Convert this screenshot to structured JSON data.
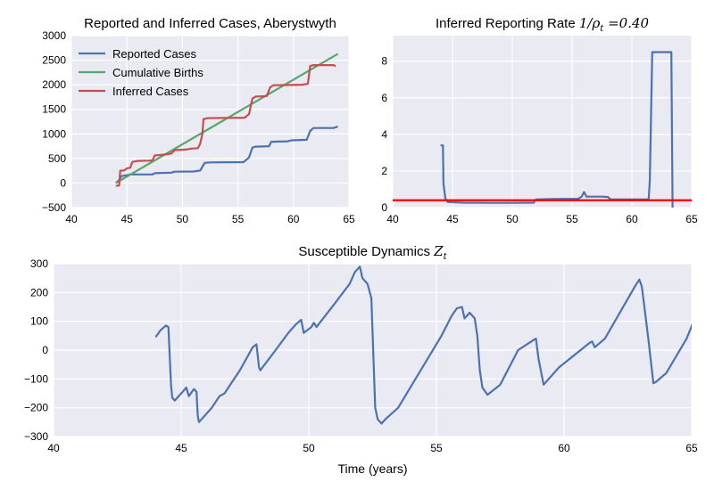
{
  "chart_data": [
    {
      "type": "line",
      "title": "Reported and Inferred Cases, Aberystwyth",
      "xlabel": "",
      "ylabel": "",
      "xlim": [
        40,
        65
      ],
      "ylim": [
        -500,
        3000
      ],
      "xticks": [
        40,
        45,
        50,
        55,
        60,
        65
      ],
      "yticks": [
        -500,
        0,
        500,
        1000,
        1500,
        2000,
        2500,
        3000
      ],
      "xticklabels": [
        "40",
        "45",
        "50",
        "55",
        "60",
        "65"
      ],
      "yticklabels": [
        "−500",
        "0",
        "500",
        "1000",
        "1500",
        "2000",
        "2500",
        "3000"
      ],
      "grid": true,
      "legend": "top-left",
      "series": [
        {
          "name": "Reported Cases",
          "color": "#4C72B0",
          "points": [
            [
              44.0,
              0
            ],
            [
              44.3,
              60
            ],
            [
              44.5,
              140
            ],
            [
              45.0,
              160
            ],
            [
              45.3,
              175
            ],
            [
              47.3,
              175
            ],
            [
              47.5,
              200
            ],
            [
              49.0,
              210
            ],
            [
              49.3,
              230
            ],
            [
              51.0,
              235
            ],
            [
              51.6,
              255
            ],
            [
              52.0,
              410
            ],
            [
              52.5,
              420
            ],
            [
              55.5,
              425
            ],
            [
              56.0,
              520
            ],
            [
              56.3,
              720
            ],
            [
              56.6,
              740
            ],
            [
              57.8,
              750
            ],
            [
              58.0,
              840
            ],
            [
              59.5,
              850
            ],
            [
              59.8,
              870
            ],
            [
              61.2,
              880
            ],
            [
              61.5,
              1060
            ],
            [
              61.8,
              1120
            ],
            [
              63.6,
              1120
            ],
            [
              64.0,
              1150
            ]
          ]
        },
        {
          "name": "Cumulative Births",
          "color": "#55A868",
          "points": [
            [
              44.0,
              0
            ],
            [
              64.0,
              2630
            ]
          ]
        },
        {
          "name": "Inferred Cases",
          "color": "#C44E52",
          "points": [
            [
              44.0,
              -60
            ],
            [
              44.3,
              -50
            ],
            [
              44.4,
              250
            ],
            [
              44.8,
              260
            ],
            [
              45.0,
              300
            ],
            [
              45.3,
              310
            ],
            [
              45.5,
              430
            ],
            [
              46.0,
              450
            ],
            [
              47.0,
              455
            ],
            [
              47.3,
              460
            ],
            [
              47.5,
              560
            ],
            [
              48.5,
              580
            ],
            [
              49.0,
              600
            ],
            [
              49.3,
              670
            ],
            [
              50.3,
              680
            ],
            [
              50.8,
              700
            ],
            [
              51.4,
              710
            ],
            [
              51.6,
              800
            ],
            [
              51.8,
              1000
            ],
            [
              51.9,
              1300
            ],
            [
              52.3,
              1320
            ],
            [
              55.6,
              1330
            ],
            [
              56.0,
              1400
            ],
            [
              56.3,
              1720
            ],
            [
              56.6,
              1760
            ],
            [
              57.6,
              1770
            ],
            [
              57.9,
              1950
            ],
            [
              58.2,
              1990
            ],
            [
              60.8,
              2000
            ],
            [
              61.3,
              2020
            ],
            [
              61.5,
              2380
            ],
            [
              61.8,
              2400
            ],
            [
              63.6,
              2400
            ],
            [
              63.8,
              2380
            ]
          ]
        }
      ]
    },
    {
      "type": "line",
      "title": "Inferred Reporting Rate",
      "title_math": "1/ρ",
      "title_math_sub": "t",
      "title_math_value": "=0.40",
      "xlabel": "",
      "ylabel": "",
      "xlim": [
        40,
        65
      ],
      "ylim": [
        0,
        9.4
      ],
      "xticks": [
        40,
        45,
        50,
        55,
        60,
        65
      ],
      "yticks": [
        0,
        2,
        4,
        6,
        8
      ],
      "xticklabels": [
        "40",
        "45",
        "50",
        "55",
        "60",
        "65"
      ],
      "yticklabels": [
        "0",
        "2",
        "4",
        "6",
        "8"
      ],
      "grid": true,
      "hline": {
        "value": 0.4,
        "color": "#FF0000"
      },
      "series": [
        {
          "name": "",
          "color": "#4C72B0",
          "points": [
            [
              44.0,
              3.4
            ],
            [
              44.2,
              3.4
            ],
            [
              44.25,
              1.3
            ],
            [
              44.4,
              0.5
            ],
            [
              44.6,
              0.3
            ],
            [
              46.0,
              0.27
            ],
            [
              48.0,
              0.26
            ],
            [
              50.0,
              0.26
            ],
            [
              51.8,
              0.27
            ],
            [
              52.0,
              0.45
            ],
            [
              53.5,
              0.47
            ],
            [
              55.5,
              0.48
            ],
            [
              55.8,
              0.6
            ],
            [
              56.0,
              0.85
            ],
            [
              56.2,
              0.6
            ],
            [
              57.5,
              0.6
            ],
            [
              58.0,
              0.58
            ],
            [
              58.2,
              0.45
            ],
            [
              61.4,
              0.45
            ],
            [
              61.5,
              1.5
            ],
            [
              61.7,
              8.5
            ],
            [
              63.3,
              8.5
            ],
            [
              63.4,
              0
            ]
          ]
        }
      ]
    },
    {
      "type": "line",
      "title": "Susceptible Dynamics",
      "title_math": "Z",
      "title_math_sub": "t",
      "xlabel": "Time (years)",
      "ylabel": "",
      "xlim": [
        40,
        65
      ],
      "ylim": [
        -300,
        300
      ],
      "xticks": [
        40,
        45,
        50,
        55,
        60,
        65
      ],
      "yticks": [
        -300,
        -200,
        -100,
        0,
        100,
        200,
        300
      ],
      "xticklabels": [
        "40",
        "45",
        "50",
        "55",
        "60",
        "65"
      ],
      "yticklabels": [
        "−300",
        "−200",
        "−100",
        "0",
        "100",
        "200",
        "300"
      ],
      "grid": true,
      "series": [
        {
          "name": "",
          "color": "#4C72B0",
          "points": [
            [
              44.0,
              45
            ],
            [
              44.2,
              70
            ],
            [
              44.4,
              85
            ],
            [
              44.5,
              80
            ],
            [
              44.6,
              -120
            ],
            [
              44.65,
              -165
            ],
            [
              44.75,
              -175
            ],
            [
              45.1,
              -140
            ],
            [
              45.2,
              -130
            ],
            [
              45.3,
              -160
            ],
            [
              45.5,
              -135
            ],
            [
              45.6,
              -145
            ],
            [
              45.65,
              -230
            ],
            [
              45.7,
              -250
            ],
            [
              46.2,
              -200
            ],
            [
              46.5,
              -160
            ],
            [
              46.7,
              -150
            ],
            [
              47.3,
              -70
            ],
            [
              47.8,
              10
            ],
            [
              47.95,
              20
            ],
            [
              48.05,
              -60
            ],
            [
              48.1,
              -70
            ],
            [
              48.7,
              0
            ],
            [
              49.2,
              60
            ],
            [
              49.5,
              90
            ],
            [
              49.7,
              105
            ],
            [
              49.8,
              60
            ],
            [
              50.1,
              80
            ],
            [
              50.2,
              95
            ],
            [
              50.3,
              80
            ],
            [
              51.0,
              160
            ],
            [
              51.6,
              230
            ],
            [
              51.8,
              270
            ],
            [
              52.0,
              290
            ],
            [
              52.1,
              250
            ],
            [
              52.3,
              230
            ],
            [
              52.45,
              180
            ],
            [
              52.6,
              -200
            ],
            [
              52.7,
              -240
            ],
            [
              52.85,
              -255
            ],
            [
              53.0,
              -240
            ],
            [
              53.5,
              -200
            ],
            [
              55.2,
              50
            ],
            [
              55.6,
              120
            ],
            [
              55.8,
              145
            ],
            [
              56.0,
              150
            ],
            [
              56.1,
              110
            ],
            [
              56.3,
              130
            ],
            [
              56.5,
              110
            ],
            [
              56.6,
              50
            ],
            [
              56.7,
              -70
            ],
            [
              56.8,
              -130
            ],
            [
              57.0,
              -155
            ],
            [
              57.5,
              -120
            ],
            [
              58.2,
              0
            ],
            [
              58.8,
              35
            ],
            [
              58.9,
              40
            ],
            [
              59.0,
              -30
            ],
            [
              59.2,
              -120
            ],
            [
              59.8,
              -60
            ],
            [
              61.0,
              25
            ],
            [
              61.1,
              30
            ],
            [
              61.2,
              10
            ],
            [
              61.6,
              40
            ],
            [
              62.8,
              225
            ],
            [
              62.95,
              245
            ],
            [
              63.05,
              220
            ],
            [
              63.3,
              40
            ],
            [
              63.5,
              -115
            ],
            [
              63.6,
              -110
            ],
            [
              64.0,
              -80
            ],
            [
              64.8,
              40
            ],
            [
              65.4,
              170
            ],
            [
              65.6,
              210
            ],
            [
              65.9,
              250
            ]
          ]
        }
      ]
    }
  ]
}
